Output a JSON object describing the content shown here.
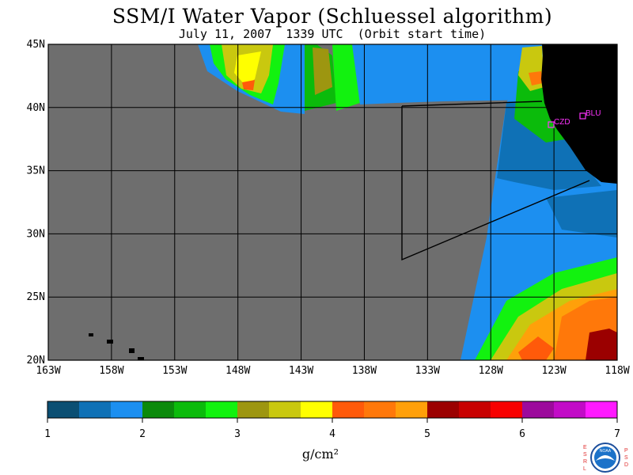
{
  "title": "SSM/I Water Vapor (Schluessel algorithm)",
  "subtitle": "July 11, 2007  1339 UTC  (Orbit start time)",
  "map": {
    "land_color": "#000000",
    "no_data_color": "#6e6e6e",
    "x_ticks": [
      "163W",
      "158W",
      "153W",
      "148W",
      "143W",
      "138W",
      "133W",
      "128W",
      "123W",
      "118W"
    ],
    "y_ticks": [
      "45N",
      "40N",
      "35N",
      "30N",
      "25N",
      "20N"
    ],
    "stations": [
      {
        "label": "CZD",
        "color": "#ff33ff"
      },
      {
        "label": "BLU",
        "color": "#ff33ff"
      }
    ]
  },
  "colorbar": {
    "colors": [
      "#0b4f73",
      "#0f71b6",
      "#1c8ff0",
      "#0b8a0b",
      "#0bbb0b",
      "#12f20f",
      "#9d9610",
      "#c9c80f",
      "#ffff00",
      "#ff5a0a",
      "#ff780a",
      "#ffa00a",
      "#9b0000",
      "#c80000",
      "#f70000",
      "#9c0a9c",
      "#c20bc7",
      "#ff1aff"
    ],
    "labels": [
      "1",
      "2",
      "3",
      "4",
      "5",
      "6",
      "7"
    ],
    "unit": "g/cm²"
  },
  "logo": {
    "left_letters": "ESRL",
    "right_letters": "PSD",
    "center_text": "NOAA"
  }
}
